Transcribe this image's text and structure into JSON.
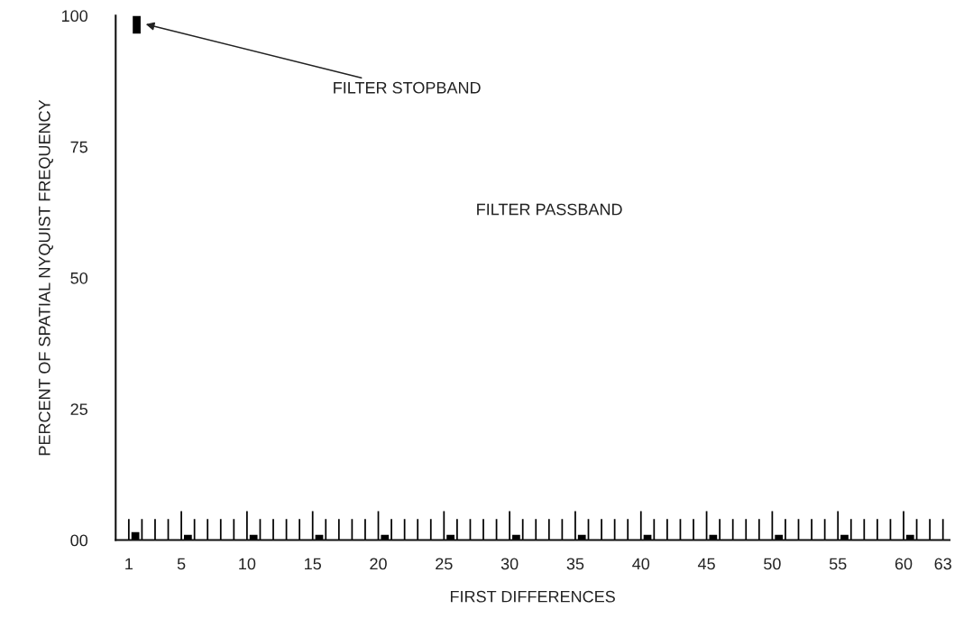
{
  "chart_data": {
    "type": "bar",
    "xlabel": "FIRST DIFFERENCES",
    "ylabel": "PERCENT OF SPATIAL NYQUIST FREQUENCY",
    "x": [
      1,
      2,
      3,
      4,
      5,
      6,
      7,
      8,
      9,
      10,
      11,
      12,
      13,
      14,
      15,
      16,
      17,
      18,
      19,
      20,
      21,
      22,
      23,
      24,
      25,
      26,
      27,
      28,
      29,
      30,
      31,
      32,
      33,
      34,
      35,
      36,
      37,
      38,
      39,
      40,
      41,
      42,
      43,
      44,
      45,
      46,
      47,
      48,
      49,
      50,
      51,
      52,
      53,
      54,
      55,
      56,
      57,
      58,
      59,
      60,
      61,
      62,
      63
    ],
    "series": [
      {
        "color": "#000000",
        "values": [
          4,
          4,
          4,
          4,
          5.5,
          4,
          4,
          4,
          4,
          5.5,
          4,
          4,
          4,
          4,
          5.5,
          4,
          4,
          4,
          4,
          5.5,
          4,
          4,
          4,
          4,
          5.5,
          4,
          4,
          4,
          4,
          5.5,
          4,
          4,
          4,
          4,
          5.5,
          4,
          4,
          4,
          4,
          5.5,
          4,
          4,
          4,
          4,
          5.5,
          4,
          4,
          4,
          4,
          5.5,
          4,
          4,
          4,
          4,
          5.5,
          4,
          4,
          4,
          4,
          5.5,
          4,
          4,
          4
        ]
      },
      {
        "color": "#000000",
        "x": [
          1.5,
          5.5,
          10.5,
          15.5,
          20.5,
          25.5,
          30.5,
          35.5,
          40.5,
          45.5,
          50.5,
          55.5,
          60.5
        ],
        "values": [
          1.5,
          1,
          1,
          1,
          1,
          1,
          1,
          1,
          1,
          1,
          1,
          1,
          1
        ]
      },
      {
        "color": "#000000",
        "x": [
          1.6
        ],
        "base": [
          96.6
        ],
        "values": [
          3.4
        ]
      }
    ],
    "annotations": [
      {
        "text": "FILTER STOPBAND",
        "x": 2.1,
        "y": 98.5
      },
      "FILTER PASSBAND"
    ],
    "xlim": [
      0,
      63.5
    ],
    "xticks": [
      1,
      5,
      10,
      15,
      20,
      25,
      30,
      35,
      40,
      45,
      50,
      55,
      60,
      63
    ],
    "ylim": [
      0,
      100
    ],
    "yticks": [
      {
        "value": 0,
        "label": "00"
      },
      25,
      50,
      75,
      100
    ],
    "grid": false,
    "legend": false
  }
}
